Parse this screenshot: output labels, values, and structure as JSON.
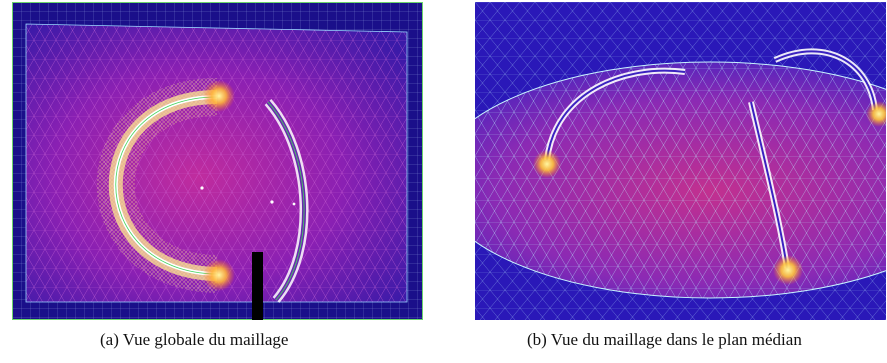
{
  "figure": {
    "panels": [
      {
        "id": "a",
        "caption": "(a)  Vue globale du maillage",
        "colors": {
          "background": "#1a0f8a",
          "mesh": "#9a1fb0",
          "wire": "#ffe890",
          "hotspot": "#ffd21a",
          "edge": "#42d35a"
        }
      },
      {
        "id": "b",
        "caption": "(b)  Vue du maillage dans le plan médian",
        "colors": {
          "background": "#2a18b8",
          "mesh": "#b0289a",
          "wire": "#ffffff",
          "hotspot": "#ffd21a",
          "edge": "#a7f0ff"
        }
      }
    ]
  }
}
